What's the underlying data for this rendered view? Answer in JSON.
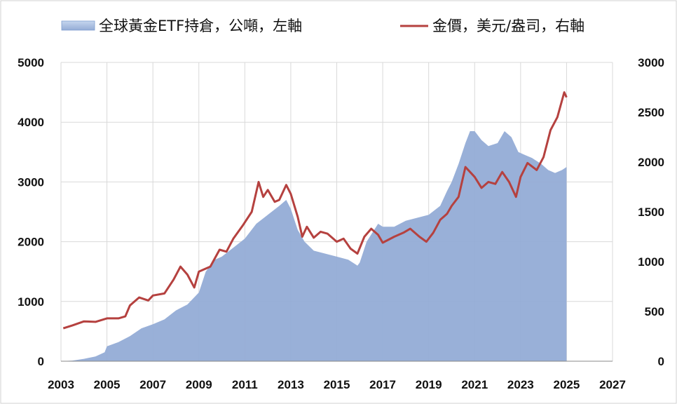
{
  "chart_data": {
    "type": "area+line",
    "title": "",
    "xlabel": "",
    "ylabel_left": "",
    "ylabel_right": "",
    "x_range": [
      2003,
      2027
    ],
    "x_ticks": [
      "2003",
      "2005",
      "2007",
      "2009",
      "2011",
      "2013",
      "2015",
      "2017",
      "2019",
      "2021",
      "2023",
      "2025",
      "2027"
    ],
    "left_axis": {
      "range": [
        0,
        5000
      ],
      "ticks": [
        "0",
        "1000",
        "2000",
        "3000",
        "4000",
        "5000"
      ]
    },
    "right_axis": {
      "range": [
        0,
        3000
      ],
      "ticks": [
        "0",
        "500",
        "1000",
        "1500",
        "2000",
        "2500",
        "3000"
      ]
    },
    "grid": true,
    "legend_position": "top",
    "series": [
      {
        "name": "全球黃金ETF持倉，公噸，左軸",
        "type": "area",
        "axis": "left",
        "color": "#94acd6",
        "points": [
          [
            2003.0,
            0
          ],
          [
            2003.5,
            10
          ],
          [
            2004.0,
            40
          ],
          [
            2004.5,
            80
          ],
          [
            2004.9,
            150
          ],
          [
            2005.0,
            250
          ],
          [
            2005.5,
            320
          ],
          [
            2006.0,
            420
          ],
          [
            2006.5,
            550
          ],
          [
            2007.0,
            620
          ],
          [
            2007.5,
            700
          ],
          [
            2008.0,
            850
          ],
          [
            2008.5,
            950
          ],
          [
            2009.0,
            1150
          ],
          [
            2009.3,
            1500
          ],
          [
            2009.7,
            1700
          ],
          [
            2010.0,
            1750
          ],
          [
            2010.5,
            1900
          ],
          [
            2011.0,
            2050
          ],
          [
            2011.5,
            2300
          ],
          [
            2012.0,
            2450
          ],
          [
            2012.5,
            2600
          ],
          [
            2012.8,
            2700
          ],
          [
            2013.0,
            2550
          ],
          [
            2013.3,
            2200
          ],
          [
            2013.6,
            2000
          ],
          [
            2014.0,
            1850
          ],
          [
            2014.5,
            1800
          ],
          [
            2015.0,
            1750
          ],
          [
            2015.5,
            1700
          ],
          [
            2015.9,
            1600
          ],
          [
            2016.0,
            1650
          ],
          [
            2016.3,
            2000
          ],
          [
            2016.8,
            2300
          ],
          [
            2017.0,
            2250
          ],
          [
            2017.5,
            2250
          ],
          [
            2018.0,
            2350
          ],
          [
            2018.5,
            2400
          ],
          [
            2019.0,
            2450
          ],
          [
            2019.5,
            2600
          ],
          [
            2019.8,
            2850
          ],
          [
            2020.0,
            3000
          ],
          [
            2020.3,
            3300
          ],
          [
            2020.6,
            3650
          ],
          [
            2020.8,
            3850
          ],
          [
            2021.0,
            3850
          ],
          [
            2021.3,
            3700
          ],
          [
            2021.6,
            3600
          ],
          [
            2022.0,
            3650
          ],
          [
            2022.3,
            3850
          ],
          [
            2022.6,
            3750
          ],
          [
            2022.9,
            3500
          ],
          [
            2023.2,
            3450
          ],
          [
            2023.5,
            3400
          ],
          [
            2023.9,
            3300
          ],
          [
            2024.2,
            3200
          ],
          [
            2024.5,
            3150
          ],
          [
            2024.8,
            3200
          ],
          [
            2025.0,
            3250
          ],
          [
            2025.0,
            0
          ]
        ]
      },
      {
        "name": "金價，美元/盎司，右軸",
        "type": "line",
        "axis": "right",
        "color": "#b5413f",
        "points": [
          [
            2003.1,
            330
          ],
          [
            2003.5,
            360
          ],
          [
            2004.0,
            400
          ],
          [
            2004.5,
            395
          ],
          [
            2005.0,
            430
          ],
          [
            2005.5,
            430
          ],
          [
            2005.8,
            450
          ],
          [
            2006.0,
            560
          ],
          [
            2006.4,
            640
          ],
          [
            2006.8,
            610
          ],
          [
            2007.0,
            660
          ],
          [
            2007.5,
            680
          ],
          [
            2007.9,
            820
          ],
          [
            2008.2,
            950
          ],
          [
            2008.5,
            870
          ],
          [
            2008.8,
            740
          ],
          [
            2009.0,
            900
          ],
          [
            2009.5,
            950
          ],
          [
            2009.9,
            1120
          ],
          [
            2010.2,
            1100
          ],
          [
            2010.5,
            1230
          ],
          [
            2010.9,
            1360
          ],
          [
            2011.3,
            1500
          ],
          [
            2011.6,
            1800
          ],
          [
            2011.8,
            1650
          ],
          [
            2012.0,
            1720
          ],
          [
            2012.3,
            1600
          ],
          [
            2012.5,
            1620
          ],
          [
            2012.8,
            1770
          ],
          [
            2013.0,
            1680
          ],
          [
            2013.3,
            1450
          ],
          [
            2013.5,
            1250
          ],
          [
            2013.7,
            1350
          ],
          [
            2014.0,
            1240
          ],
          [
            2014.3,
            1300
          ],
          [
            2014.6,
            1280
          ],
          [
            2015.0,
            1200
          ],
          [
            2015.3,
            1230
          ],
          [
            2015.6,
            1130
          ],
          [
            2015.9,
            1080
          ],
          [
            2016.2,
            1250
          ],
          [
            2016.5,
            1330
          ],
          [
            2016.8,
            1270
          ],
          [
            2017.0,
            1190
          ],
          [
            2017.5,
            1250
          ],
          [
            2017.9,
            1290
          ],
          [
            2018.2,
            1330
          ],
          [
            2018.6,
            1250
          ],
          [
            2018.9,
            1200
          ],
          [
            2019.2,
            1290
          ],
          [
            2019.5,
            1420
          ],
          [
            2019.8,
            1480
          ],
          [
            2020.0,
            1560
          ],
          [
            2020.3,
            1650
          ],
          [
            2020.6,
            1950
          ],
          [
            2020.8,
            1900
          ],
          [
            2021.0,
            1850
          ],
          [
            2021.3,
            1740
          ],
          [
            2021.6,
            1800
          ],
          [
            2021.9,
            1780
          ],
          [
            2022.2,
            1900
          ],
          [
            2022.5,
            1800
          ],
          [
            2022.8,
            1650
          ],
          [
            2023.0,
            1850
          ],
          [
            2023.3,
            1990
          ],
          [
            2023.7,
            1920
          ],
          [
            2024.0,
            2050
          ],
          [
            2024.3,
            2320
          ],
          [
            2024.6,
            2450
          ],
          [
            2024.9,
            2700
          ],
          [
            2025.0,
            2650
          ]
        ]
      }
    ]
  }
}
